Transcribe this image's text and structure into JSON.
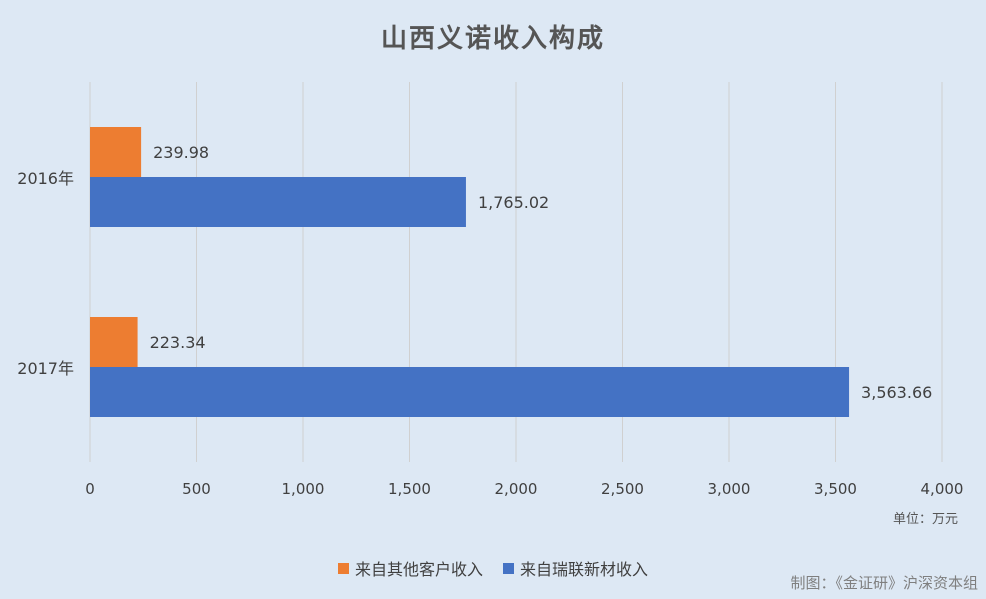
{
  "chart_data": {
    "type": "bar",
    "orientation": "horizontal",
    "title": "山西义诺收入构成",
    "categories": [
      "2016年",
      "2017年"
    ],
    "series": [
      {
        "name": "来自其他客户收入",
        "color": "#ed7d31",
        "values": [
          239.98,
          223.34
        ],
        "labels": [
          "239.98",
          "223.34"
        ]
      },
      {
        "name": "来自瑞联新材收入",
        "color": "#4472c4",
        "values": [
          1765.02,
          3563.66
        ],
        "labels": [
          "1,765.02",
          "3,563.66"
        ]
      }
    ],
    "xlim": [
      0,
      4000
    ],
    "xticks": [
      0,
      500,
      1000,
      1500,
      2000,
      2500,
      3000,
      3500,
      4000
    ],
    "xtick_labels": [
      "0",
      "500",
      "1,000",
      "1,500",
      "2,000",
      "2,500",
      "3,000",
      "3,500",
      "4,000"
    ],
    "unit_label": "单位：万元",
    "grid": true,
    "legend_position": "bottom"
  },
  "credit": "制图：《金证研》沪深资本组"
}
